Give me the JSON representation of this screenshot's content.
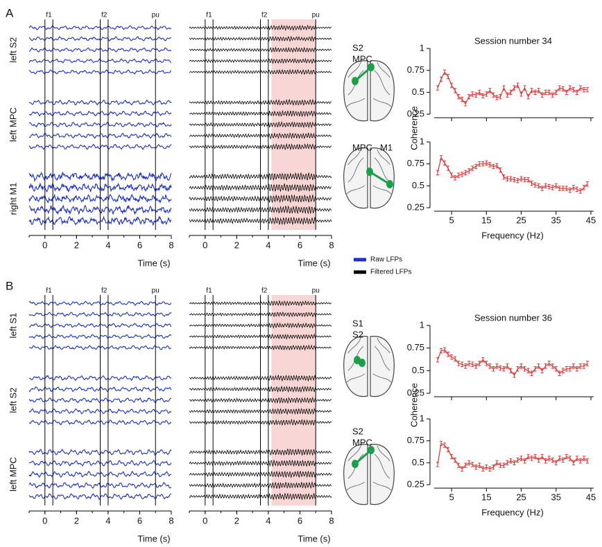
{
  "panel_labels": [
    "A",
    "B"
  ],
  "legend": [
    {
      "name": "Raw LFPs",
      "color": "#1a2fd6"
    },
    {
      "name": "Filtered LFPs",
      "color": "#000000"
    }
  ],
  "chart_data": [
    {
      "type": "lfp_traces",
      "regions": [
        "left S2",
        "left MPC",
        "right M1"
      ],
      "xlim": [
        -1,
        8
      ],
      "xticks": [
        0,
        2,
        4,
        6,
        8
      ],
      "xlabel": "Time (s)",
      "events": [
        {
          "label": "f1",
          "times": [
            0,
            0.5
          ]
        },
        {
          "label": "f2",
          "times": [
            3.5,
            4
          ]
        },
        {
          "label": "pu",
          "times": [
            7
          ]
        }
      ],
      "highlight": [
        4.2,
        7
      ],
      "highlight_color": "#f8d6d6"
    },
    {
      "type": "line",
      "title": "Session number 34",
      "regions": [
        "S2",
        "MPC"
      ],
      "ylabel": "Coherence",
      "color": "#e8312f",
      "error": 0.025,
      "xlim": [
        0,
        45
      ],
      "xticks": [
        5,
        15,
        25,
        35,
        45
      ],
      "ylim": [
        0.25,
        1
      ],
      "yticks": [
        0.25,
        0.5,
        0.75,
        1
      ],
      "x": [
        1,
        2,
        3,
        4,
        5,
        6,
        7,
        8,
        9,
        10,
        11,
        12,
        13,
        14,
        15,
        16,
        17,
        18,
        19,
        20,
        21,
        22,
        23,
        24,
        25,
        26,
        27,
        28,
        29,
        30,
        31,
        32,
        33,
        34,
        35,
        36,
        37,
        38,
        39,
        40,
        41,
        42,
        43,
        44
      ],
      "values": [
        0.55,
        0.65,
        0.73,
        0.68,
        0.58,
        0.52,
        0.45,
        0.42,
        0.37,
        0.45,
        0.48,
        0.47,
        0.5,
        0.46,
        0.48,
        0.52,
        0.47,
        0.44,
        0.45,
        0.55,
        0.47,
        0.5,
        0.55,
        0.58,
        0.48,
        0.55,
        0.45,
        0.52,
        0.5,
        0.52,
        0.47,
        0.5,
        0.5,
        0.47,
        0.5,
        0.55,
        0.54,
        0.5,
        0.55,
        0.53,
        0.5,
        0.55,
        0.53,
        0.53
      ]
    },
    {
      "type": "line",
      "regions": [
        "MPC",
        "M1"
      ],
      "xlabel": "Frequency (Hz)",
      "color": "#e8312f",
      "error": 0.025,
      "xlim": [
        0,
        45
      ],
      "xticks": [
        5,
        15,
        25,
        35,
        45
      ],
      "ylim": [
        0.25,
        1
      ],
      "yticks": [
        0.25,
        0.5,
        0.75,
        1
      ],
      "x": [
        1,
        2,
        3,
        4,
        5,
        6,
        7,
        8,
        9,
        10,
        11,
        12,
        13,
        14,
        15,
        16,
        17,
        18,
        19,
        20,
        21,
        22,
        23,
        24,
        25,
        26,
        27,
        28,
        29,
        30,
        31,
        32,
        33,
        34,
        35,
        36,
        37,
        38,
        39,
        40,
        41,
        42,
        43,
        44
      ],
      "values": [
        0.65,
        0.82,
        0.76,
        0.7,
        0.62,
        0.59,
        0.62,
        0.63,
        0.65,
        0.67,
        0.7,
        0.72,
        0.75,
        0.75,
        0.76,
        0.74,
        0.72,
        0.73,
        0.68,
        0.6,
        0.58,
        0.58,
        0.57,
        0.56,
        0.58,
        0.57,
        0.57,
        0.53,
        0.51,
        0.5,
        0.47,
        0.5,
        0.49,
        0.48,
        0.5,
        0.47,
        0.47,
        0.47,
        0.45,
        0.48,
        0.46,
        0.44,
        0.48,
        0.52
      ]
    },
    {
      "type": "lfp_traces",
      "regions": [
        "left S1",
        "left S2",
        "left MPC"
      ],
      "xlim": [
        -1,
        8
      ],
      "xticks": [
        0,
        2,
        4,
        6,
        8
      ],
      "xlabel": "Time (s)",
      "events": [
        {
          "label": "f1",
          "times": [
            0,
            0.5
          ]
        },
        {
          "label": "f2",
          "times": [
            3.5,
            4
          ]
        },
        {
          "label": "pu",
          "times": [
            7
          ]
        }
      ],
      "highlight": [
        4.2,
        7
      ],
      "highlight_color": "#f8d6d6"
    },
    {
      "type": "line",
      "title": "Session number 36",
      "regions": [
        "S1",
        "S2"
      ],
      "ylabel": "Coherence",
      "color": "#e8312f",
      "error": 0.025,
      "xlim": [
        0,
        45
      ],
      "xticks": [
        5,
        15,
        25,
        35,
        45
      ],
      "ylim": [
        0.25,
        1
      ],
      "yticks": [
        0.25,
        0.5,
        0.75,
        1
      ],
      "x": [
        1,
        2,
        3,
        4,
        5,
        6,
        7,
        8,
        9,
        10,
        11,
        12,
        13,
        14,
        15,
        16,
        17,
        18,
        19,
        20,
        21,
        22,
        23,
        24,
        25,
        26,
        27,
        28,
        29,
        30,
        31,
        32,
        33,
        34,
        35,
        36,
        37,
        38,
        39,
        40,
        41,
        42,
        43,
        44
      ],
      "values": [
        0.62,
        0.72,
        0.73,
        0.68,
        0.65,
        0.63,
        0.58,
        0.57,
        0.55,
        0.58,
        0.57,
        0.55,
        0.58,
        0.62,
        0.58,
        0.55,
        0.52,
        0.55,
        0.53,
        0.52,
        0.55,
        0.5,
        0.45,
        0.52,
        0.55,
        0.52,
        0.5,
        0.47,
        0.52,
        0.55,
        0.5,
        0.55,
        0.58,
        0.55,
        0.52,
        0.47,
        0.5,
        0.52,
        0.52,
        0.55,
        0.52,
        0.55,
        0.55,
        0.58
      ]
    },
    {
      "type": "line",
      "regions": [
        "S2",
        "MPC"
      ],
      "xlabel": "Frequency (Hz)",
      "color": "#e8312f",
      "error": 0.025,
      "xlim": [
        0,
        45
      ],
      "xticks": [
        5,
        15,
        25,
        35,
        45
      ],
      "ylim": [
        0.25,
        1
      ],
      "yticks": [
        0.25,
        0.5,
        0.75,
        1
      ],
      "x": [
        1,
        2,
        3,
        4,
        5,
        6,
        7,
        8,
        9,
        10,
        11,
        12,
        13,
        14,
        15,
        16,
        17,
        18,
        19,
        20,
        21,
        22,
        23,
        24,
        25,
        26,
        27,
        28,
        29,
        30,
        31,
        32,
        33,
        34,
        35,
        36,
        37,
        38,
        39,
        40,
        41,
        42,
        43,
        44
      ],
      "values": [
        0.48,
        0.72,
        0.7,
        0.65,
        0.57,
        0.53,
        0.47,
        0.43,
        0.47,
        0.5,
        0.48,
        0.45,
        0.47,
        0.43,
        0.45,
        0.43,
        0.45,
        0.5,
        0.47,
        0.47,
        0.5,
        0.52,
        0.5,
        0.53,
        0.55,
        0.52,
        0.57,
        0.55,
        0.57,
        0.53,
        0.57,
        0.52,
        0.55,
        0.53,
        0.5,
        0.55,
        0.53,
        0.57,
        0.55,
        0.5,
        0.55,
        0.52,
        0.55,
        0.52
      ]
    }
  ]
}
